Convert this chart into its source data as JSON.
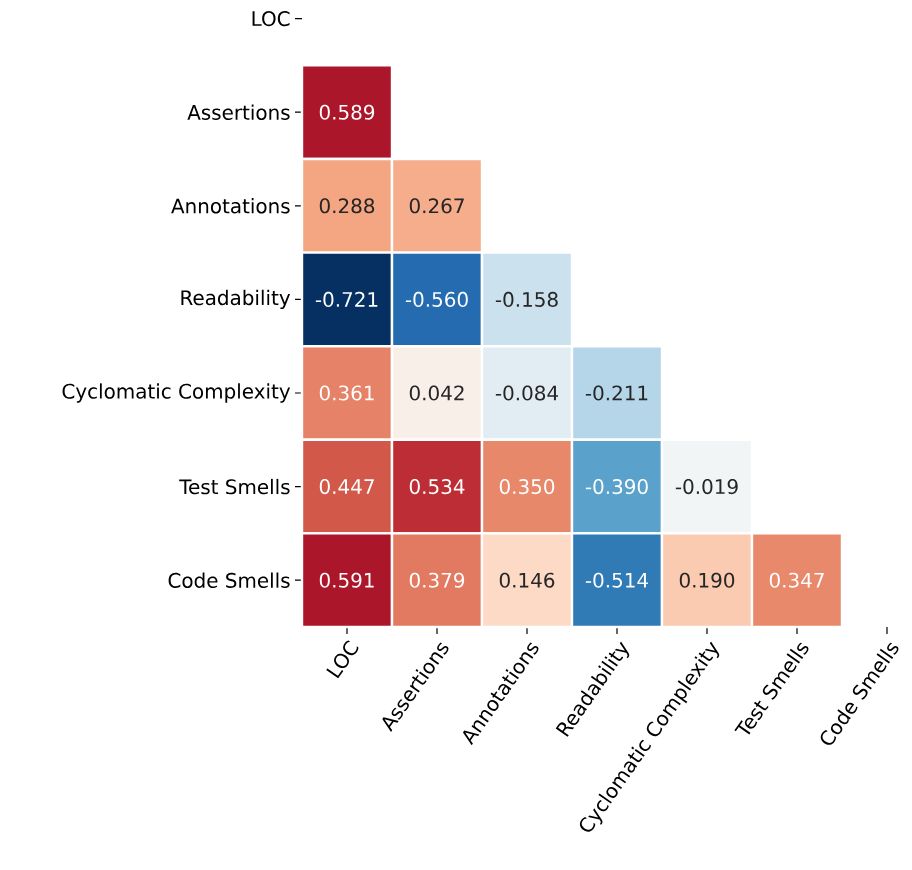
{
  "chart_data": {
    "type": "heatmap",
    "categories": [
      "LOC",
      "Assertions",
      "Annotations",
      "Readability",
      "Cyclomatic Complexity",
      "Test Smells",
      "Code Smells"
    ],
    "y_categories": [
      "LOC",
      "Assertions",
      "Annotations",
      "Readability",
      "Cyclomatic Complexity",
      "Test Smells",
      "Code Smells"
    ],
    "cells": [
      [
        null,
        null,
        null,
        null,
        null,
        null,
        null
      ],
      [
        0.589,
        null,
        null,
        null,
        null,
        null,
        null
      ],
      [
        0.288,
        0.267,
        null,
        null,
        null,
        null,
        null
      ],
      [
        -0.721,
        -0.56,
        -0.158,
        null,
        null,
        null,
        null
      ],
      [
        0.361,
        0.042,
        -0.084,
        -0.211,
        null,
        null,
        null
      ],
      [
        0.447,
        0.534,
        0.35,
        -0.39,
        -0.019,
        null,
        null
      ],
      [
        0.591,
        0.379,
        0.146,
        -0.514,
        0.19,
        0.347,
        null
      ]
    ],
    "cell_labels": [
      [
        null,
        null,
        null,
        null,
        null,
        null,
        null
      ],
      [
        "0.589",
        null,
        null,
        null,
        null,
        null,
        null
      ],
      [
        "0.288",
        "0.267",
        null,
        null,
        null,
        null,
        null
      ],
      [
        "-0.721",
        "-0.560",
        "-0.158",
        null,
        null,
        null,
        null
      ],
      [
        "0.361",
        "0.042",
        "-0.084",
        "-0.211",
        null,
        null,
        null
      ],
      [
        "0.447",
        "0.534",
        "0.350",
        "-0.390",
        "-0.019",
        null,
        null
      ],
      [
        "0.591",
        "0.379",
        "0.146",
        "-0.514",
        "0.190",
        "0.347",
        null
      ]
    ]
  }
}
